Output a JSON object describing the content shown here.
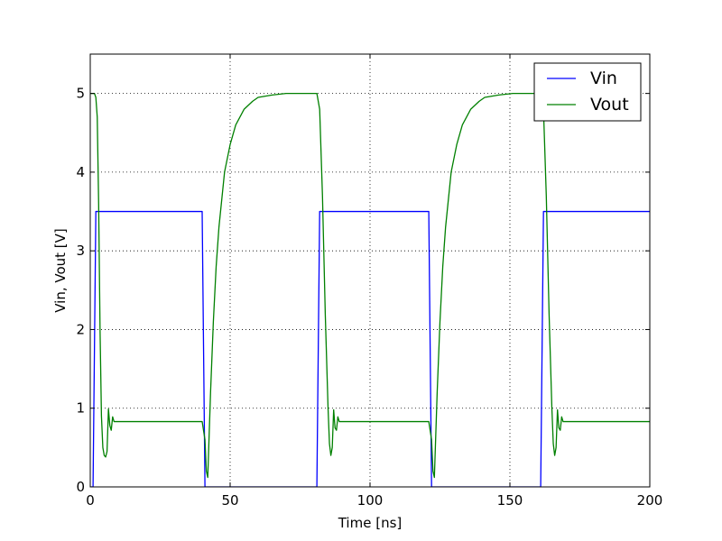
{
  "chart_data": {
    "type": "line",
    "xlabel": "Time [ns]",
    "ylabel": "Vin, Vout [V]",
    "xlim": [
      0,
      200
    ],
    "ylim": [
      0,
      5.5
    ],
    "xticks": [
      0,
      50,
      100,
      150,
      200
    ],
    "yticks": [
      0,
      1,
      2,
      3,
      4,
      5
    ],
    "xtick_labels": [
      "0",
      "50",
      "100",
      "150",
      "200"
    ],
    "ytick_labels": [
      "0",
      "1",
      "2",
      "3",
      "4",
      "5"
    ],
    "grid": true,
    "legend_position": "top-right",
    "series": [
      {
        "name": "Vin",
        "color": "#0000ff",
        "x": [
          0,
          1,
          2,
          40,
          41,
          81,
          82,
          121,
          122,
          161,
          162,
          200
        ],
        "y": [
          0,
          0,
          3.5,
          3.5,
          0,
          0,
          3.5,
          3.5,
          0,
          0,
          3.5,
          3.5
        ]
      },
      {
        "name": "Vout",
        "color": "#008000",
        "x": [
          0,
          1.5,
          2,
          2.5,
          3,
          3.5,
          4,
          4.5,
          5,
          5.5,
          6,
          6.5,
          7,
          7.5,
          8,
          8.5,
          9,
          10,
          40,
          41,
          41.5,
          42,
          43,
          44,
          45,
          46,
          48,
          50,
          52,
          55,
          58,
          60,
          65,
          70,
          75,
          81,
          82,
          83,
          84,
          85,
          85.5,
          86,
          86.5,
          87,
          87.5,
          88,
          88.5,
          89,
          89.5,
          90,
          121,
          122,
          122.5,
          123,
          124,
          125,
          126,
          127,
          129,
          131,
          133,
          136,
          139,
          141,
          146,
          151,
          156,
          161,
          162,
          163,
          164,
          165,
          165.5,
          166,
          166.5,
          167,
          167.5,
          168,
          168.5,
          169,
          169.5,
          170,
          200
        ],
        "y": [
          5,
          5,
          4.95,
          4.7,
          3.6,
          2.0,
          0.9,
          0.5,
          0.4,
          0.38,
          0.45,
          0.99,
          0.78,
          0.72,
          0.89,
          0.83,
          0.83,
          0.83,
          0.83,
          0.6,
          0.2,
          0.12,
          1.2,
          2.1,
          2.8,
          3.3,
          4.0,
          4.35,
          4.6,
          4.8,
          4.9,
          4.95,
          4.98,
          5.0,
          5.0,
          5.0,
          4.8,
          3.7,
          2.2,
          1.0,
          0.55,
          0.4,
          0.5,
          0.98,
          0.75,
          0.72,
          0.89,
          0.83,
          0.83,
          0.83,
          0.83,
          0.6,
          0.2,
          0.12,
          1.2,
          2.1,
          2.8,
          3.3,
          4.0,
          4.35,
          4.6,
          4.8,
          4.9,
          4.95,
          4.98,
          5.0,
          5.0,
          5.0,
          4.8,
          3.7,
          2.2,
          1.0,
          0.55,
          0.4,
          0.5,
          0.98,
          0.75,
          0.72,
          0.89,
          0.83,
          0.83,
          0.83,
          0.83
        ]
      }
    ]
  }
}
